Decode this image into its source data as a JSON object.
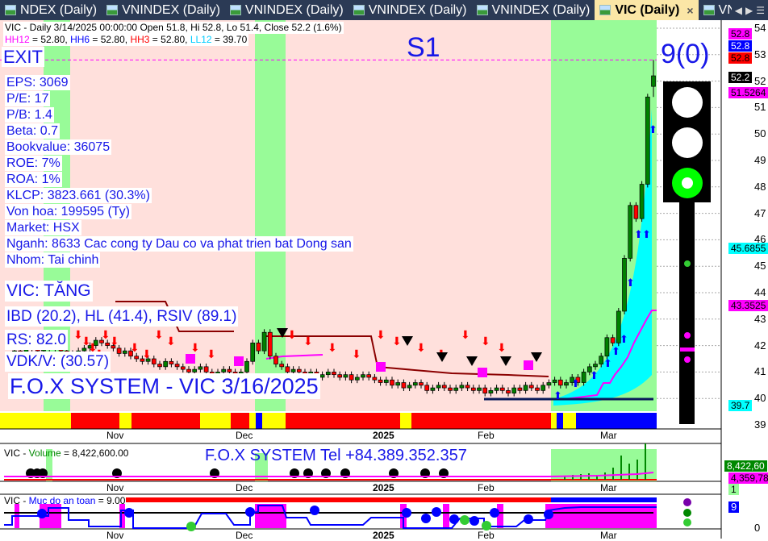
{
  "tabs": [
    {
      "label": "NDEX (Daily)"
    },
    {
      "label": "VNINDEX (Daily)"
    },
    {
      "label": "VNINDEX (Daily)"
    },
    {
      "label": "VNINDEX (Daily)"
    },
    {
      "label": "VNINDEX (Daily)"
    },
    {
      "label": "VIC (Daily)",
      "active": true
    },
    {
      "label": "VNINDEX (Daily)"
    }
  ],
  "tab_close": "×",
  "header": {
    "line1": "VIC - Daily 3/14/2025 00:00:00 Open 51.8, Hi 52.8, Lo 51.4, Close 52.2 (1.6%)",
    "hh12_name": "HH12",
    "hh12_val": " = 52.80, ",
    "hh6_name": "HH6",
    "hh6_val": " = 52.80, ",
    "hh3_name": "HH3",
    "hh3_val": " = 52.80, ",
    "ll12_name": "LL12",
    "ll12_val": " = 39.70"
  },
  "overlay": {
    "exit": "EXIT",
    "s1": "S1",
    "signal": "9(0)",
    "fundamentals": [
      "EPS: 3069",
      "P/E: 17",
      "P/B: 1.4",
      "Beta: 0.7",
      "Bookvalue: 36075",
      "ROE: 7%",
      "ROA: 1%",
      "KLCP: 3823.661 (30.3%)",
      "Von hoa: 199595 (Ty)",
      "Market: HSX",
      "Nganh: 8633 Cac cong ty Dau co va phat trien bat Dong san",
      "Nhom: Tai chinh"
    ],
    "trend": "VIC: TĂNG",
    "ratings": "IBD (20.2), HL (41.4), RSIV (89.1)",
    "rs": "RS: 82.0",
    "vdk": "VDK/V:  (30.57)",
    "watermark": "F.O.X SYSTEM - VIC 3/16/2025",
    "contact": "F.O.X SYSTEM Tel +84.389.352.357"
  },
  "price_axis": {
    "ticks": [
      "54",
      "53",
      "52",
      "51",
      "50",
      "49",
      "48",
      "47",
      "46",
      "45",
      "44",
      "43",
      "42",
      "41",
      "40",
      "39"
    ],
    "tags": [
      {
        "text": "52.8",
        "bg": "#ff00ff",
        "fg": "#000"
      },
      {
        "text": "52.8",
        "bg": "#0000ff",
        "fg": "#fff"
      },
      {
        "text": "52.8",
        "bg": "#ff0000",
        "fg": "#000"
      },
      {
        "text": "52.2",
        "bg": "#000000",
        "fg": "#fff"
      },
      {
        "text": "51.5264",
        "bg": "#ff00ff",
        "fg": "#000"
      },
      {
        "text": "45.6855",
        "bg": "#00ffff",
        "fg": "#000"
      },
      {
        "text": "43.3525",
        "bg": "#ff00ff",
        "fg": "#000"
      },
      {
        "text": "39.7",
        "bg": "#00ffff",
        "fg": "#000"
      }
    ]
  },
  "volume_pane": {
    "title_sym": "VIC - ",
    "title_name": "Volume",
    "title_val": " = 8,422,600.00",
    "tag_vol": "8,422,60",
    "tag_ma": "4,359,78",
    "tag_small": "1"
  },
  "safety_pane": {
    "title_sym": "VIC - ",
    "title_name": "Muc do an toan",
    "title_val": " = 9.00",
    "tag": "9",
    "axis_zero": "0"
  },
  "date_ticks": [
    "Nov",
    "Dec",
    "2025",
    "Feb",
    "Mar"
  ],
  "colors": {
    "bull": "#008000",
    "bear": "#ff0000",
    "signal_zone": "#98fb98",
    "background": "#ffe0dc",
    "accent": "#1818e8"
  },
  "chart_data": {
    "type": "candlestick",
    "symbol": "VIC",
    "interval": "Daily",
    "ylim": [
      39,
      54
    ],
    "grid": true,
    "x_ticks": [
      "Nov",
      "Dec",
      "2025",
      "Feb",
      "Mar"
    ],
    "close": [
      41.6,
      41.8,
      41.7,
      41.9,
      42.0,
      41.8,
      41.9,
      42.1,
      41.9,
      41.8,
      41.7,
      41.6,
      41.8,
      41.9,
      42.0,
      42.2,
      42.1,
      42.0,
      41.9,
      41.7,
      41.8,
      41.6,
      41.5,
      41.4,
      41.5,
      41.3,
      41.2,
      41.4,
      41.3,
      41.2,
      41.1,
      41.0,
      41.1,
      41.2,
      41.0,
      40.9,
      41.0,
      41.1,
      41.0,
      40.9,
      41.0,
      41.4,
      42.1,
      41.8,
      42.5,
      41.6,
      41.3,
      41.2,
      41.0,
      41.1,
      41.0,
      40.9,
      41.0,
      40.8,
      40.9,
      41.0,
      40.9,
      40.8,
      40.9,
      40.7,
      40.8,
      40.9,
      40.8,
      40.7,
      40.6,
      40.7,
      40.5,
      40.6,
      40.4,
      40.5,
      40.6,
      40.5,
      40.3,
      40.4,
      40.5,
      40.4,
      40.3,
      40.4,
      40.5,
      40.4,
      40.3,
      40.4,
      40.2,
      40.3,
      40.4,
      40.3,
      40.2,
      40.4,
      40.3,
      40.5,
      40.4,
      40.3,
      40.5,
      40.6,
      40.7,
      40.5,
      40.6,
      40.8,
      40.6,
      41.0,
      41.2,
      41.3,
      41.6,
      42.3,
      42.1,
      43.3,
      45.3,
      47.3,
      46.8,
      48.1,
      51.4,
      52.2
    ],
    "last": {
      "open": 51.8,
      "high": 52.8,
      "low": 51.4,
      "close": 52.2
    }
  }
}
